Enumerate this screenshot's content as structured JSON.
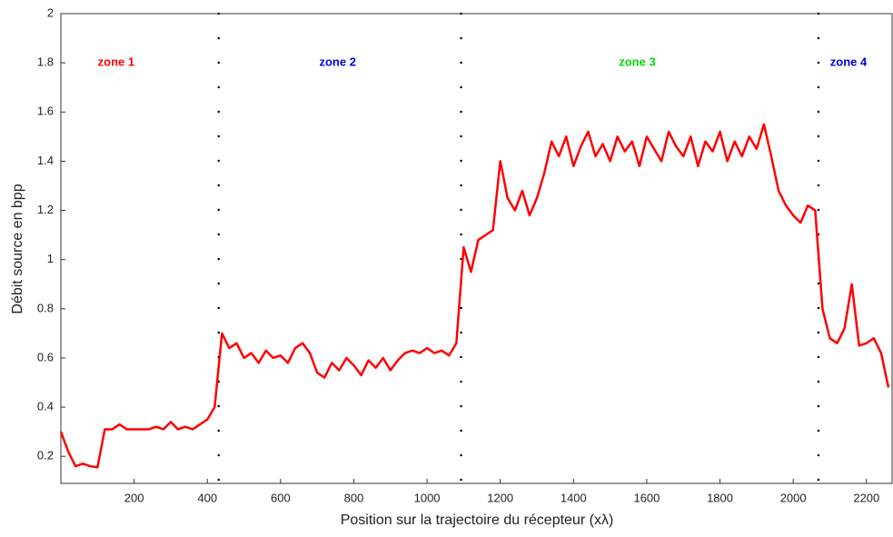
{
  "chart_data": {
    "type": "line",
    "x_label": "Position sur la trajectoire du récepteur (xλ)",
    "y_label": "Débit source en bpp",
    "x": [
      0,
      20,
      40,
      60,
      80,
      100,
      120,
      140,
      160,
      180,
      200,
      220,
      240,
      260,
      280,
      300,
      320,
      340,
      360,
      380,
      400,
      420,
      440,
      460,
      480,
      500,
      520,
      540,
      560,
      580,
      600,
      620,
      640,
      660,
      680,
      700,
      720,
      740,
      760,
      780,
      800,
      820,
      840,
      860,
      880,
      900,
      920,
      940,
      960,
      980,
      1000,
      1020,
      1040,
      1060,
      1080,
      1100,
      1120,
      1140,
      1160,
      1180,
      1200,
      1220,
      1240,
      1260,
      1280,
      1300,
      1320,
      1340,
      1360,
      1380,
      1400,
      1420,
      1440,
      1460,
      1480,
      1500,
      1520,
      1540,
      1560,
      1580,
      1600,
      1620,
      1640,
      1660,
      1680,
      1700,
      1720,
      1740,
      1760,
      1780,
      1800,
      1820,
      1840,
      1860,
      1880,
      1900,
      1920,
      1940,
      1960,
      1980,
      2000,
      2020,
      2040,
      2060,
      2080,
      2100,
      2120,
      2140,
      2160,
      2180,
      2200,
      2220,
      2240,
      2260
    ],
    "series": [
      {
        "color": "#ff0000",
        "values": [
          0.3,
          0.22,
          0.16,
          0.17,
          0.16,
          0.155,
          0.31,
          0.31,
          0.33,
          0.31,
          0.31,
          0.31,
          0.31,
          0.32,
          0.31,
          0.34,
          0.31,
          0.32,
          0.31,
          0.33,
          0.35,
          0.4,
          0.7,
          0.64,
          0.66,
          0.6,
          0.62,
          0.58,
          0.63,
          0.6,
          0.61,
          0.58,
          0.64,
          0.66,
          0.62,
          0.54,
          0.52,
          0.58,
          0.55,
          0.6,
          0.57,
          0.53,
          0.59,
          0.56,
          0.6,
          0.55,
          0.59,
          0.62,
          0.63,
          0.62,
          0.64,
          0.62,
          0.63,
          0.61,
          0.66,
          1.05,
          0.95,
          1.08,
          1.1,
          1.12,
          1.4,
          1.25,
          1.2,
          1.28,
          1.18,
          1.25,
          1.35,
          1.48,
          1.42,
          1.5,
          1.38,
          1.46,
          1.52,
          1.42,
          1.47,
          1.4,
          1.5,
          1.44,
          1.48,
          1.38,
          1.5,
          1.45,
          1.4,
          1.52,
          1.46,
          1.42,
          1.5,
          1.38,
          1.48,
          1.44,
          1.52,
          1.4,
          1.48,
          1.42,
          1.5,
          1.45,
          1.55,
          1.42,
          1.28,
          1.22,
          1.18,
          1.15,
          1.22,
          1.2,
          0.8,
          0.68,
          0.66,
          0.72,
          0.9,
          0.65,
          0.66,
          0.68,
          0.62,
          0.48
        ]
      }
    ],
    "zone_boundaries": [
      431,
      1093,
      2069
    ],
    "zones": [
      {
        "label": "zone 1",
        "x": 151,
        "y": 1.8,
        "color": "#ff0000"
      },
      {
        "label": "zone 2",
        "x": 756,
        "y": 1.8,
        "color": "#0000dd"
      },
      {
        "label": "zone 3",
        "x": 1574,
        "y": 1.8,
        "color": "#00dd00"
      },
      {
        "label": "zone 4",
        "x": 2151,
        "y": 1.8,
        "color": "#0000dd"
      }
    ],
    "xlim": [
      0,
      2270
    ],
    "ylim": [
      0.09,
      2
    ],
    "xticks": [
      200,
      400,
      600,
      800,
      1000,
      1200,
      1400,
      1600,
      1800,
      2000,
      2200
    ],
    "yticks": [
      0.2,
      0.4,
      0.6,
      0.8,
      1,
      1.2,
      1.4,
      1.6,
      1.8,
      2
    ]
  }
}
